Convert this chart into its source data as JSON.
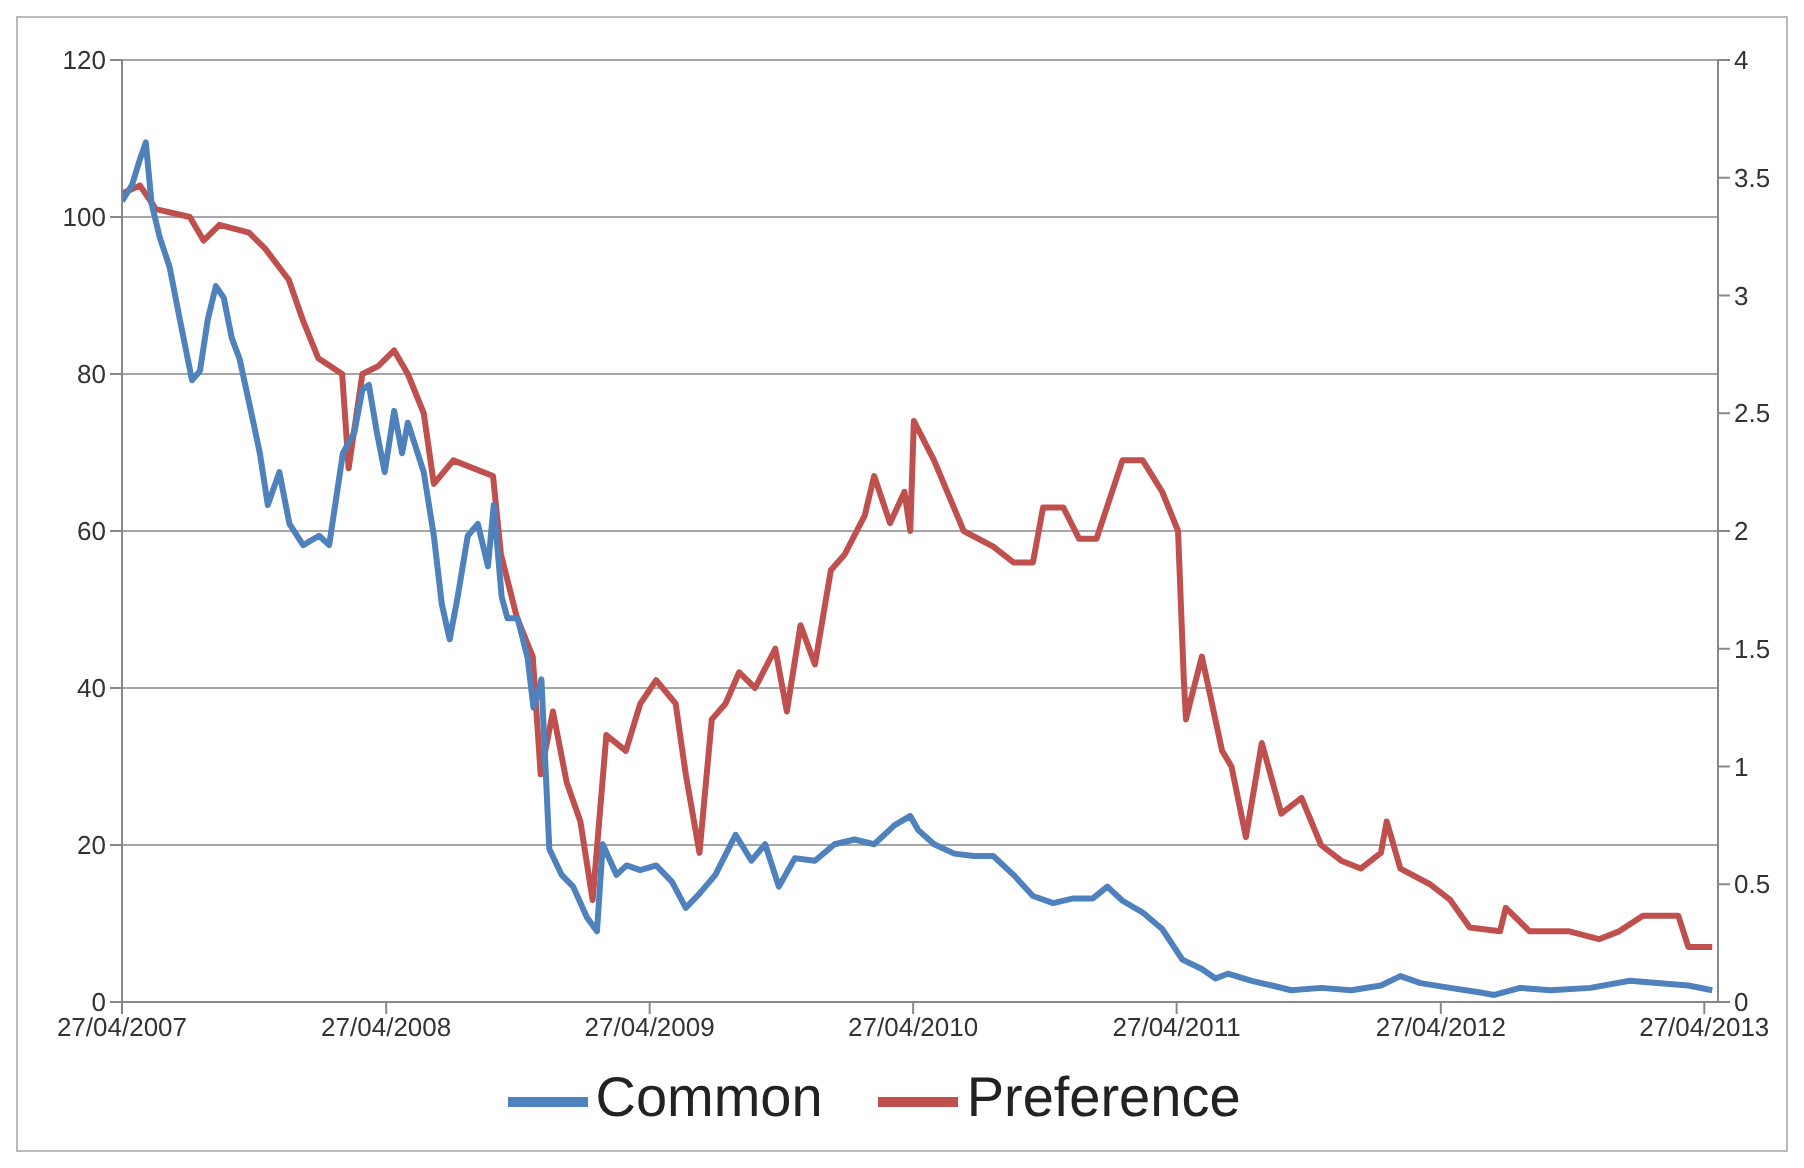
{
  "chart_data": {
    "type": "line",
    "xlim": [
      "2007-04-27",
      "2013-05-16"
    ],
    "xticks": [
      {
        "value": "2007-04-27",
        "label": "27/04/2007"
      },
      {
        "value": "2008-04-27",
        "label": "27/04/2008"
      },
      {
        "value": "2009-04-27",
        "label": "27/04/2009"
      },
      {
        "value": "2010-04-27",
        "label": "27/04/2010"
      },
      {
        "value": "2011-04-27",
        "label": "27/04/2011"
      },
      {
        "value": "2012-04-27",
        "label": "27/04/2012"
      },
      {
        "value": "2013-04-27",
        "label": "27/04/2013"
      }
    ],
    "ylim": [
      0,
      120
    ],
    "yticks": [
      0,
      20,
      40,
      60,
      80,
      100,
      120
    ],
    "y2lim": [
      0,
      4
    ],
    "y2ticks": [
      0,
      0.5,
      1,
      1.5,
      2,
      2.5,
      3,
      3.5,
      4
    ],
    "grid": "y",
    "legend": "bottom",
    "line_style": "solid",
    "marker": "none",
    "series": [
      {
        "name": "Preference",
        "color": "#c0504d",
        "x": [
          "2007-04-27",
          "2007-05-22",
          "2007-06-13",
          "2007-07-30",
          "2007-08-18",
          "2007-09-09",
          "2007-10-20",
          "2007-11-11",
          "2007-12-14",
          "2008-01-02",
          "2008-01-24",
          "2008-02-26",
          "2008-03-06",
          "2008-03-25",
          "2008-04-16",
          "2008-05-08",
          "2008-05-27",
          "2008-06-18",
          "2008-07-02",
          "2008-07-29",
          "2008-09-22",
          "2008-10-03",
          "2008-10-25",
          "2008-11-16",
          "2008-11-27",
          "2008-12-14",
          "2009-01-02",
          "2009-01-21",
          "2009-02-07",
          "2009-02-26",
          "2009-03-25",
          "2009-04-14",
          "2009-05-06",
          "2009-06-02",
          "2009-06-16",
          "2009-07-05",
          "2009-07-22",
          "2009-08-10",
          "2009-08-29",
          "2009-09-20",
          "2009-10-18",
          "2009-11-03",
          "2009-11-22",
          "2009-12-12",
          "2010-01-03",
          "2010-01-22",
          "2010-02-19",
          "2010-03-04",
          "2010-03-26",
          "2010-04-15",
          "2010-04-23",
          "2010-04-28",
          "2010-05-26",
          "2010-07-06",
          "2010-08-16",
          "2010-09-13",
          "2010-10-10",
          "2010-10-24",
          "2010-11-21",
          "2010-12-13",
          "2011-01-06",
          "2011-02-11",
          "2011-03-11",
          "2011-04-07",
          "2011-04-29",
          "2011-05-07",
          "2011-05-10",
          "2011-05-18",
          "2011-06-01",
          "2011-06-29",
          "2011-07-12",
          "2011-08-01",
          "2011-08-23",
          "2011-09-19",
          "2011-10-17",
          "2011-11-13",
          "2011-12-11",
          "2012-01-07",
          "2012-02-04",
          "2012-02-12",
          "2012-03-02",
          "2012-04-12",
          "2012-05-10",
          "2012-06-06",
          "2012-07-18",
          "2012-07-26",
          "2012-08-28",
          "2012-10-22",
          "2012-12-02",
          "2012-12-30",
          "2013-02-01",
          "2013-03-22",
          "2013-04-05",
          "2013-05-08"
        ],
        "values": [
          103,
          104,
          101,
          100,
          97,
          99,
          98,
          96,
          92,
          87,
          82,
          80,
          68,
          80,
          81,
          83,
          80,
          75,
          66,
          69,
          67,
          57,
          49,
          44,
          29,
          37,
          28,
          23,
          13,
          34,
          32,
          38,
          41,
          38,
          29,
          19,
          36,
          38,
          42,
          40,
          45,
          37,
          48,
          43,
          55,
          57,
          62,
          67,
          61,
          65,
          60,
          74,
          69,
          60,
          58,
          56,
          56,
          63,
          63,
          59,
          59,
          69,
          69,
          65,
          60,
          41,
          36,
          39,
          44,
          32,
          30,
          21,
          33,
          24,
          26,
          20,
          18,
          17,
          19,
          23,
          17,
          15,
          13,
          9.5,
          9,
          12,
          9,
          9,
          8,
          9,
          11,
          11,
          7,
          7
        ]
      },
      {
        "name": "Common",
        "color": "#4f81bd",
        "axis": "y2",
        "x": [
          "2007-04-27",
          "2007-05-11",
          "2007-05-22",
          "2007-05-30",
          "2007-06-07",
          "2007-06-18",
          "2007-07-02",
          "2007-07-16",
          "2007-08-02",
          "2007-08-13",
          "2007-08-24",
          "2007-09-04",
          "2007-09-15",
          "2007-09-26",
          "2007-10-07",
          "2007-10-26",
          "2007-11-04",
          "2007-11-15",
          "2007-12-01",
          "2007-12-15",
          "2008-01-03",
          "2008-01-25",
          "2008-02-08",
          "2008-02-27",
          "2008-03-14",
          "2008-03-25",
          "2008-04-03",
          "2008-04-14",
          "2008-04-25",
          "2008-05-08",
          "2008-05-19",
          "2008-05-27",
          "2008-06-18",
          "2008-07-02",
          "2008-07-13",
          "2008-07-24",
          "2008-08-04",
          "2008-08-18",
          "2008-09-01",
          "2008-09-15",
          "2008-09-23",
          "2008-10-04",
          "2008-10-12",
          "2008-10-26",
          "2008-11-09",
          "2008-11-17",
          "2008-11-28",
          "2008-12-09",
          "2008-12-26",
          "2009-01-11",
          "2009-01-30",
          "2009-02-13",
          "2009-02-21",
          "2009-03-12",
          "2009-03-26",
          "2009-04-14",
          "2009-05-06",
          "2009-05-28",
          "2009-06-16",
          "2009-07-05",
          "2009-07-27",
          "2009-08-24",
          "2009-09-15",
          "2009-10-04",
          "2009-10-23",
          "2009-11-14",
          "2009-12-12",
          "2010-01-08",
          "2010-02-05",
          "2010-03-04",
          "2010-04-01",
          "2010-04-23",
          "2010-05-04",
          "2010-05-26",
          "2010-06-23",
          "2010-07-20",
          "2010-08-16",
          "2010-09-13",
          "2010-10-10",
          "2010-11-07",
          "2010-12-05",
          "2011-01-01",
          "2011-01-21",
          "2011-02-11",
          "2011-03-11",
          "2011-04-07",
          "2011-05-05",
          "2011-06-01",
          "2011-06-20",
          "2011-07-07",
          "2011-08-09",
          "2011-09-06",
          "2011-10-03",
          "2011-11-13",
          "2011-12-25",
          "2012-02-04",
          "2012-03-02",
          "2012-03-30",
          "2012-05-10",
          "2012-06-21",
          "2012-07-10",
          "2012-08-15",
          "2012-09-26",
          "2012-11-20",
          "2013-01-14",
          "2013-02-25",
          "2013-04-05",
          "2013-05-08"
        ],
        "values": [
          3.4,
          3.47,
          3.58,
          3.65,
          3.39,
          3.25,
          3.12,
          2.9,
          2.64,
          2.68,
          2.9,
          3.04,
          2.99,
          2.82,
          2.73,
          2.46,
          2.33,
          2.11,
          2.25,
          2.03,
          1.94,
          1.98,
          1.94,
          2.33,
          2.42,
          2.6,
          2.62,
          2.42,
          2.25,
          2.51,
          2.33,
          2.46,
          2.25,
          1.98,
          1.69,
          1.54,
          1.72,
          1.98,
          2.03,
          1.85,
          2.11,
          1.72,
          1.63,
          1.63,
          1.46,
          1.25,
          1.37,
          0.65,
          0.54,
          0.49,
          0.36,
          0.3,
          0.67,
          0.54,
          0.58,
          0.56,
          0.58,
          0.51,
          0.4,
          0.46,
          0.54,
          0.71,
          0.6,
          0.67,
          0.49,
          0.61,
          0.6,
          0.67,
          0.69,
          0.67,
          0.75,
          0.79,
          0.73,
          0.67,
          0.63,
          0.62,
          0.62,
          0.54,
          0.45,
          0.42,
          0.44,
          0.44,
          0.49,
          0.43,
          0.38,
          0.31,
          0.18,
          0.14,
          0.1,
          0.12,
          0.09,
          0.07,
          0.05,
          0.06,
          0.05,
          0.07,
          0.11,
          0.08,
          0.06,
          0.04,
          0.03,
          0.06,
          0.05,
          0.06,
          0.09,
          0.08,
          0.07,
          0.05
        ]
      }
    ]
  }
}
